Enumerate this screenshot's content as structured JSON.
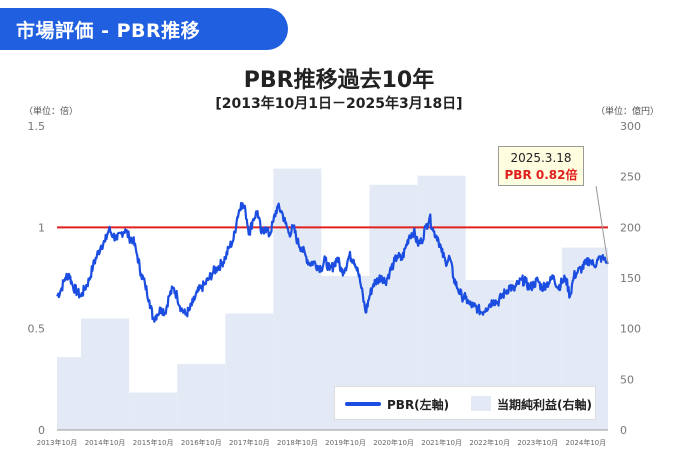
{
  "header": {
    "label": "市場評価 - PBR推移"
  },
  "chart_data": {
    "type": "line",
    "title": "PBR推移過去10年",
    "subtitle": "[2013年10月1日－2025年3月18日]",
    "left_unit": "（単位：倍）",
    "right_unit": "（単位：億円）",
    "x_range": [
      2013.75,
      2025.21
    ],
    "left_axis": {
      "ylim": [
        0,
        1.5
      ],
      "ticks": [
        0,
        0.5,
        1,
        1.5
      ],
      "tick_labels": [
        "0",
        "0.5",
        "1",
        "1.5"
      ]
    },
    "right_axis": {
      "ylim": [
        0,
        300
      ],
      "ticks": [
        0,
        50,
        100,
        150,
        200,
        250,
        300
      ],
      "tick_labels": [
        "0",
        "50",
        "100",
        "150",
        "200",
        "250",
        "300"
      ]
    },
    "x_ticks": [
      {
        "x": 2013.75,
        "label": "2013年10月"
      },
      {
        "x": 2014.75,
        "label": "2014年10月"
      },
      {
        "x": 2015.75,
        "label": "2015年10月"
      },
      {
        "x": 2016.75,
        "label": "2016年10月"
      },
      {
        "x": 2017.75,
        "label": "2017年10月"
      },
      {
        "x": 2018.75,
        "label": "2018年10月"
      },
      {
        "x": 2019.75,
        "label": "2019年10月"
      },
      {
        "x": 2020.75,
        "label": "2020年10月"
      },
      {
        "x": 2021.75,
        "label": "2021年10月"
      },
      {
        "x": 2022.75,
        "label": "2022年10月"
      },
      {
        "x": 2023.75,
        "label": "2023年10月"
      },
      {
        "x": 2024.75,
        "label": "2024年10月"
      }
    ],
    "reference_line": {
      "value": 1,
      "color": "#e0201f"
    },
    "bars": {
      "name": "当期純利益(右軸)",
      "color": "#e4eaf5",
      "data": [
        {
          "x0": 2013.75,
          "x1": 2014.25,
          "value": 72
        },
        {
          "x0": 2014.25,
          "x1": 2015.25,
          "value": 110
        },
        {
          "x0": 2015.25,
          "x1": 2016.25,
          "value": 37
        },
        {
          "x0": 2016.25,
          "x1": 2017.25,
          "value": 65
        },
        {
          "x0": 2017.25,
          "x1": 2018.25,
          "value": 115
        },
        {
          "x0": 2018.25,
          "x1": 2019.25,
          "value": 258
        },
        {
          "x0": 2019.25,
          "x1": 2020.25,
          "value": 152
        },
        {
          "x0": 2020.25,
          "x1": 2021.25,
          "value": 242
        },
        {
          "x0": 2021.25,
          "x1": 2022.25,
          "value": 251
        },
        {
          "x0": 2022.25,
          "x1": 2023.25,
          "value": 148
        },
        {
          "x0": 2023.25,
          "x1": 2024.25,
          "value": 145
        },
        {
          "x0": 2024.25,
          "x1": 2025.21,
          "value": 180
        }
      ]
    },
    "series": [
      {
        "name": "PBR(左軸)",
        "color": "#1a4de0",
        "points": [
          [
            2013.75,
            0.66
          ],
          [
            2013.83,
            0.69
          ],
          [
            2013.92,
            0.75
          ],
          [
            2014.0,
            0.77
          ],
          [
            2014.08,
            0.71
          ],
          [
            2014.17,
            0.68
          ],
          [
            2014.25,
            0.66
          ],
          [
            2014.33,
            0.7
          ],
          [
            2014.42,
            0.74
          ],
          [
            2014.5,
            0.81
          ],
          [
            2014.58,
            0.86
          ],
          [
            2014.67,
            0.91
          ],
          [
            2014.75,
            0.93
          ],
          [
            2014.83,
            0.99
          ],
          [
            2014.92,
            0.96
          ],
          [
            2015.0,
            0.94
          ],
          [
            2015.08,
            0.97
          ],
          [
            2015.17,
            0.99
          ],
          [
            2015.25,
            0.95
          ],
          [
            2015.33,
            0.94
          ],
          [
            2015.42,
            0.86
          ],
          [
            2015.5,
            0.77
          ],
          [
            2015.58,
            0.72
          ],
          [
            2015.67,
            0.64
          ],
          [
            2015.75,
            0.55
          ],
          [
            2015.83,
            0.57
          ],
          [
            2015.92,
            0.6
          ],
          [
            2016.0,
            0.58
          ],
          [
            2016.08,
            0.66
          ],
          [
            2016.17,
            0.7
          ],
          [
            2016.25,
            0.66
          ],
          [
            2016.33,
            0.6
          ],
          [
            2016.42,
            0.57
          ],
          [
            2016.5,
            0.59
          ],
          [
            2016.58,
            0.63
          ],
          [
            2016.67,
            0.68
          ],
          [
            2016.75,
            0.7
          ],
          [
            2016.83,
            0.72
          ],
          [
            2016.92,
            0.75
          ],
          [
            2017.0,
            0.78
          ],
          [
            2017.08,
            0.8
          ],
          [
            2017.17,
            0.82
          ],
          [
            2017.25,
            0.85
          ],
          [
            2017.33,
            0.9
          ],
          [
            2017.42,
            0.94
          ],
          [
            2017.5,
            1.05
          ],
          [
            2017.58,
            1.12
          ],
          [
            2017.67,
            1.08
          ],
          [
            2017.75,
            0.97
          ],
          [
            2017.83,
            1.04
          ],
          [
            2017.92,
            1.08
          ],
          [
            2018.0,
            0.97
          ],
          [
            2018.08,
            1.0
          ],
          [
            2018.17,
            0.96
          ],
          [
            2018.25,
            1.03
          ],
          [
            2018.33,
            1.1
          ],
          [
            2018.42,
            1.08
          ],
          [
            2018.5,
            1.02
          ],
          [
            2018.58,
            0.97
          ],
          [
            2018.67,
            1.0
          ],
          [
            2018.75,
            0.93
          ],
          [
            2018.83,
            0.9
          ],
          [
            2018.92,
            0.86
          ],
          [
            2019.0,
            0.82
          ],
          [
            2019.08,
            0.83
          ],
          [
            2019.17,
            0.81
          ],
          [
            2019.25,
            0.8
          ],
          [
            2019.33,
            0.84
          ],
          [
            2019.42,
            0.79
          ],
          [
            2019.5,
            0.81
          ],
          [
            2019.58,
            0.85
          ],
          [
            2019.67,
            0.78
          ],
          [
            2019.75,
            0.8
          ],
          [
            2019.83,
            0.86
          ],
          [
            2019.92,
            0.84
          ],
          [
            2020.0,
            0.8
          ],
          [
            2020.08,
            0.7
          ],
          [
            2020.17,
            0.58
          ],
          [
            2020.25,
            0.66
          ],
          [
            2020.33,
            0.72
          ],
          [
            2020.42,
            0.74
          ],
          [
            2020.5,
            0.76
          ],
          [
            2020.58,
            0.73
          ],
          [
            2020.67,
            0.78
          ],
          [
            2020.75,
            0.82
          ],
          [
            2020.83,
            0.86
          ],
          [
            2020.92,
            0.84
          ],
          [
            2021.0,
            0.9
          ],
          [
            2021.08,
            0.96
          ],
          [
            2021.17,
            0.98
          ],
          [
            2021.25,
            0.92
          ],
          [
            2021.33,
            0.93
          ],
          [
            2021.42,
            1.0
          ],
          [
            2021.5,
            1.05
          ],
          [
            2021.58,
            0.98
          ],
          [
            2021.67,
            0.95
          ],
          [
            2021.75,
            0.88
          ],
          [
            2021.83,
            0.83
          ],
          [
            2021.92,
            0.85
          ],
          [
            2022.0,
            0.75
          ],
          [
            2022.08,
            0.7
          ],
          [
            2022.17,
            0.66
          ],
          [
            2022.25,
            0.65
          ],
          [
            2022.33,
            0.62
          ],
          [
            2022.42,
            0.61
          ],
          [
            2022.5,
            0.6
          ],
          [
            2022.58,
            0.58
          ],
          [
            2022.67,
            0.6
          ],
          [
            2022.75,
            0.62
          ],
          [
            2022.83,
            0.64
          ],
          [
            2022.92,
            0.63
          ],
          [
            2023.0,
            0.66
          ],
          [
            2023.08,
            0.68
          ],
          [
            2023.17,
            0.71
          ],
          [
            2023.25,
            0.69
          ],
          [
            2023.33,
            0.72
          ],
          [
            2023.42,
            0.74
          ],
          [
            2023.5,
            0.73
          ],
          [
            2023.58,
            0.7
          ],
          [
            2023.67,
            0.72
          ],
          [
            2023.75,
            0.74
          ],
          [
            2023.83,
            0.7
          ],
          [
            2023.92,
            0.72
          ],
          [
            2024.0,
            0.73
          ],
          [
            2024.08,
            0.76
          ],
          [
            2024.17,
            0.7
          ],
          [
            2024.25,
            0.73
          ],
          [
            2024.33,
            0.75
          ],
          [
            2024.42,
            0.66
          ],
          [
            2024.5,
            0.76
          ],
          [
            2024.58,
            0.78
          ],
          [
            2024.67,
            0.8
          ],
          [
            2024.75,
            0.82
          ],
          [
            2024.83,
            0.84
          ],
          [
            2024.92,
            0.81
          ],
          [
            2025.0,
            0.84
          ],
          [
            2025.08,
            0.85
          ],
          [
            2025.21,
            0.82
          ]
        ]
      }
    ],
    "annotation": {
      "x": 2025.21,
      "y": 0.82,
      "date": "2025.3.18",
      "label": "PBR 0.82倍"
    },
    "legend": {
      "placement": "bottom-right",
      "pbr_label": "PBR(左軸)",
      "profit_label": "当期純利益(右軸)"
    },
    "grid": false
  }
}
